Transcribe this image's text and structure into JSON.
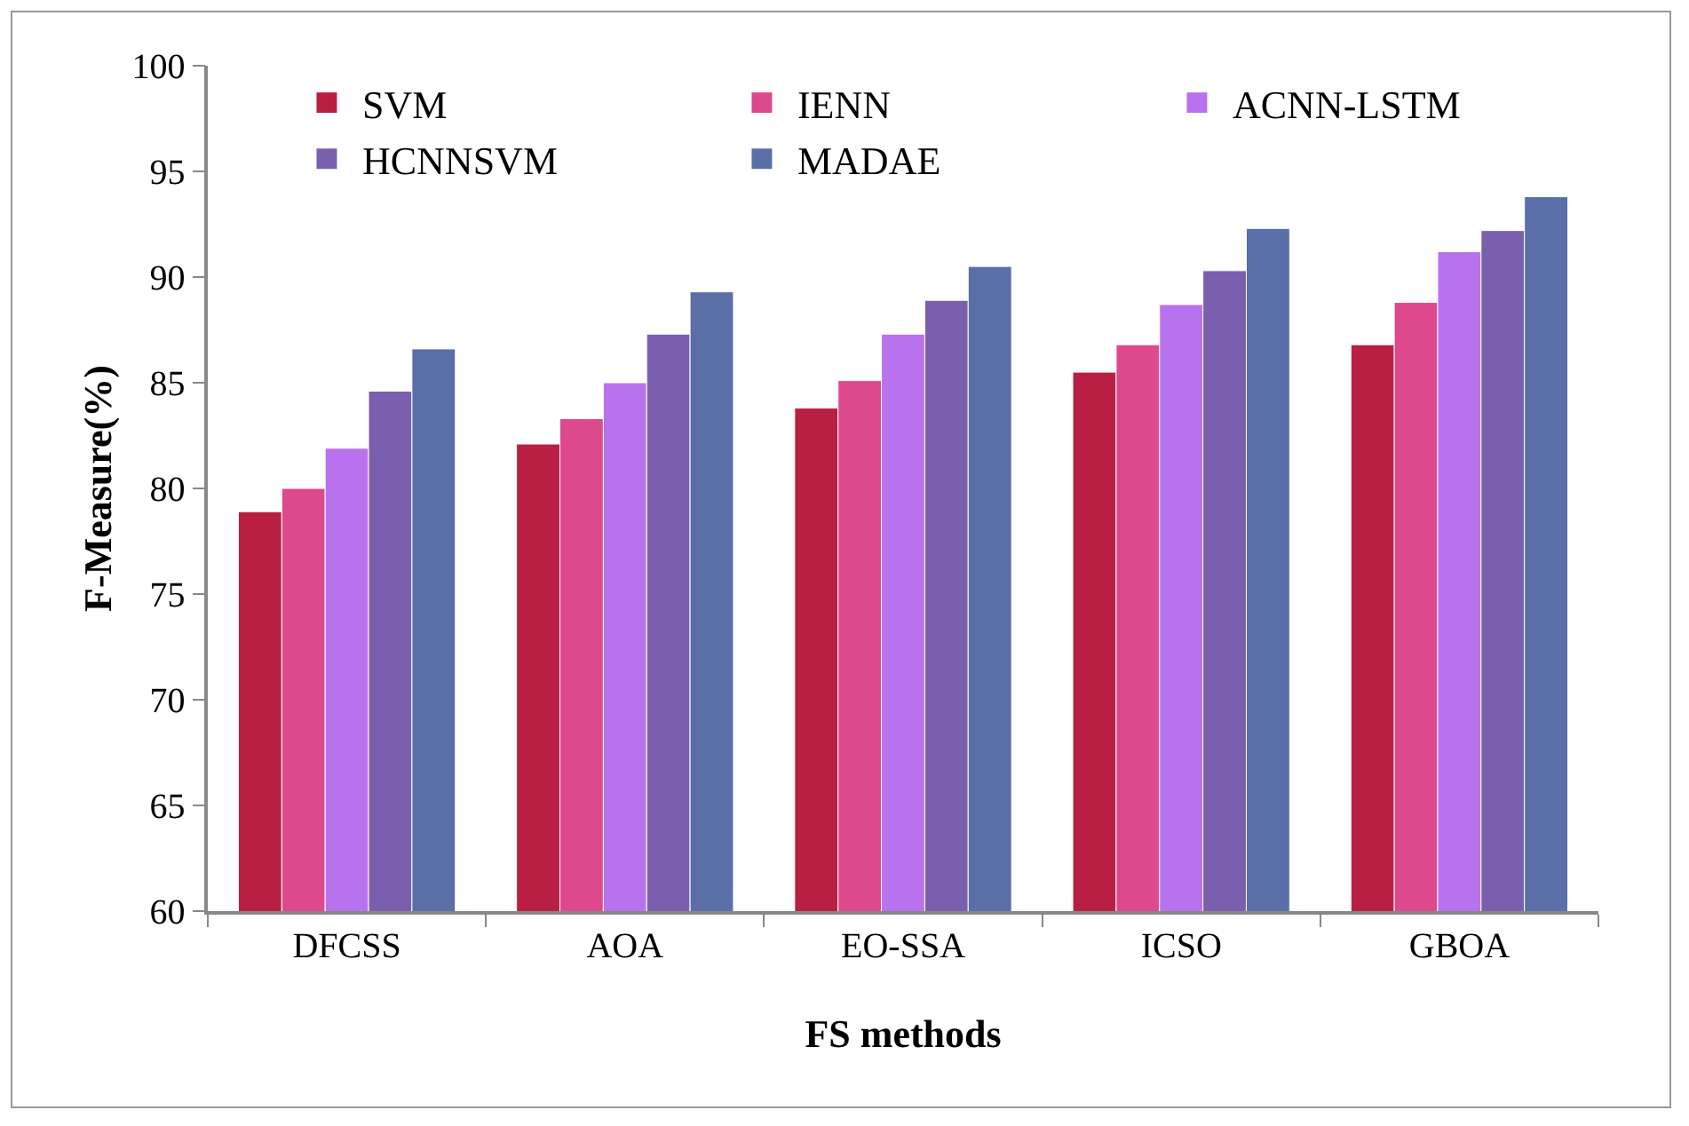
{
  "chart_data": {
    "type": "bar",
    "xlabel": "FS methods",
    "ylabel": "F-Measure(%)",
    "categories": [
      "DFCSS",
      "AOA",
      "EO-SSA",
      "ICSO",
      "GBOA"
    ],
    "series": [
      {
        "name": "SVM",
        "color": "#b81f42",
        "values": [
          78.9,
          82.1,
          83.8,
          85.5,
          86.8
        ]
      },
      {
        "name": "IENN",
        "color": "#de488d",
        "values": [
          80.0,
          83.3,
          85.1,
          86.8,
          88.8
        ]
      },
      {
        "name": "ACNN-LSTM",
        "color": "#b972ed",
        "values": [
          81.9,
          85.0,
          87.3,
          88.7,
          91.2
        ]
      },
      {
        "name": "HCNNSVM",
        "color": "#7a5fae",
        "values": [
          84.6,
          87.3,
          88.9,
          90.3,
          92.2
        ]
      },
      {
        "name": "MADAE",
        "color": "#5a6fa8",
        "values": [
          86.6,
          89.3,
          90.5,
          92.3,
          93.8
        ]
      }
    ],
    "ylim": [
      60,
      100
    ],
    "yticks": [
      60,
      65,
      70,
      75,
      80,
      85,
      90,
      95,
      100
    ],
    "grid": false,
    "legend": "top left"
  }
}
